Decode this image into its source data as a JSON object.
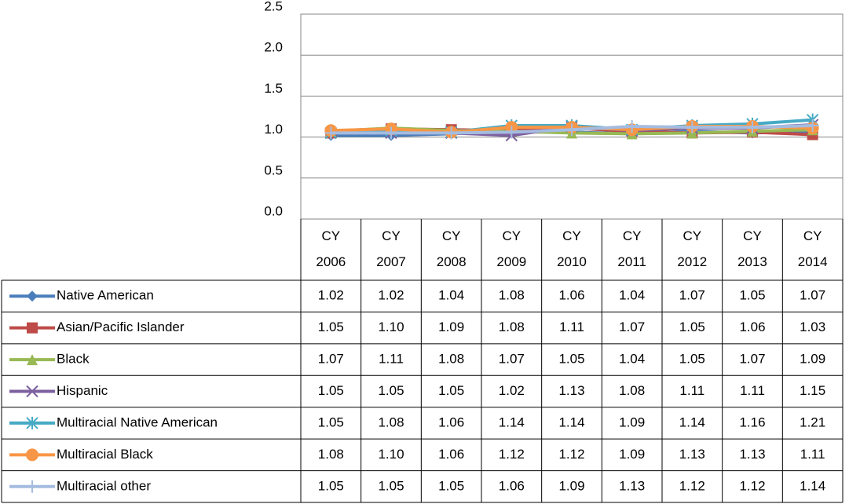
{
  "chart_data": {
    "type": "line",
    "categories": [
      "CY 2006",
      "CY 2007",
      "CY 2008",
      "CY 2009",
      "CY 2010",
      "CY 2011",
      "CY 2012",
      "CY 2013",
      "CY 2014"
    ],
    "ylim": [
      0,
      2.5
    ],
    "yticks": [
      {
        "value": 0,
        "label": "0.0"
      },
      0.5,
      {
        "value": 1,
        "label": "1.0"
      },
      1.5,
      {
        "value": 2,
        "label": "2.0"
      },
      2.5
    ],
    "grid": true,
    "series": [
      {
        "name": "Native American",
        "color": "#4a7ebb",
        "marker": "diamond",
        "values": [
          1.02,
          1.02,
          1.04,
          1.08,
          1.06,
          1.04,
          1.07,
          1.05,
          1.07
        ],
        "value_labels": [
          "1.02",
          "1.02",
          "1.04",
          "1.08",
          "1.06",
          "1.04",
          "1.07",
          "1.05",
          "1.07"
        ]
      },
      {
        "name": "Asian/Pacific Islander",
        "color": "#be4b48",
        "marker": "square",
        "values": [
          1.05,
          1.1,
          1.09,
          1.08,
          1.11,
          1.07,
          1.05,
          1.06,
          1.03
        ],
        "value_labels": [
          "1.05",
          "1.10",
          "1.09",
          "1.08",
          "1.11",
          "1.07",
          "1.05",
          "1.06",
          "1.03"
        ]
      },
      {
        "name": "Black",
        "color": "#98b954",
        "marker": "triangle",
        "values": [
          1.07,
          1.11,
          1.08,
          1.07,
          1.05,
          1.04,
          1.05,
          1.07,
          1.09
        ],
        "value_labels": [
          "1.07",
          "1.11",
          "1.08",
          "1.07",
          "1.05",
          "1.04",
          "1.05",
          "1.07",
          "1.09"
        ]
      },
      {
        "name": "Hispanic",
        "color": "#7d60a0",
        "marker": "x",
        "values": [
          1.05,
          1.05,
          1.05,
          1.02,
          1.13,
          1.08,
          1.11,
          1.11,
          1.15
        ],
        "value_labels": [
          "1.05",
          "1.05",
          "1.05",
          "1.02",
          "1.13",
          "1.08",
          "1.11",
          "1.11",
          "1.15"
        ]
      },
      {
        "name": "Multiracial Native American",
        "color": "#46aac5",
        "marker": "star",
        "values": [
          1.05,
          1.08,
          1.06,
          1.14,
          1.14,
          1.09,
          1.14,
          1.16,
          1.21
        ],
        "value_labels": [
          "1.05",
          "1.08",
          "1.06",
          "1.14",
          "1.14",
          "1.09",
          "1.14",
          "1.16",
          "1.21"
        ]
      },
      {
        "name": "Multiracial Black",
        "color": "#f79646",
        "marker": "circle",
        "values": [
          1.08,
          1.1,
          1.06,
          1.12,
          1.12,
          1.09,
          1.13,
          1.13,
          1.11
        ],
        "value_labels": [
          "1.08",
          "1.10",
          "1.06",
          "1.12",
          "1.12",
          "1.09",
          "1.13",
          "1.13",
          "1.11"
        ]
      },
      {
        "name": "Multiracial other",
        "color": "#a5bce0",
        "marker": "plus",
        "values": [
          1.05,
          1.05,
          1.05,
          1.06,
          1.09,
          1.13,
          1.12,
          1.12,
          1.14
        ],
        "value_labels": [
          "1.05",
          "1.05",
          "1.05",
          "1.06",
          "1.09",
          "1.13",
          "1.12",
          "1.12",
          "1.14"
        ]
      }
    ]
  }
}
